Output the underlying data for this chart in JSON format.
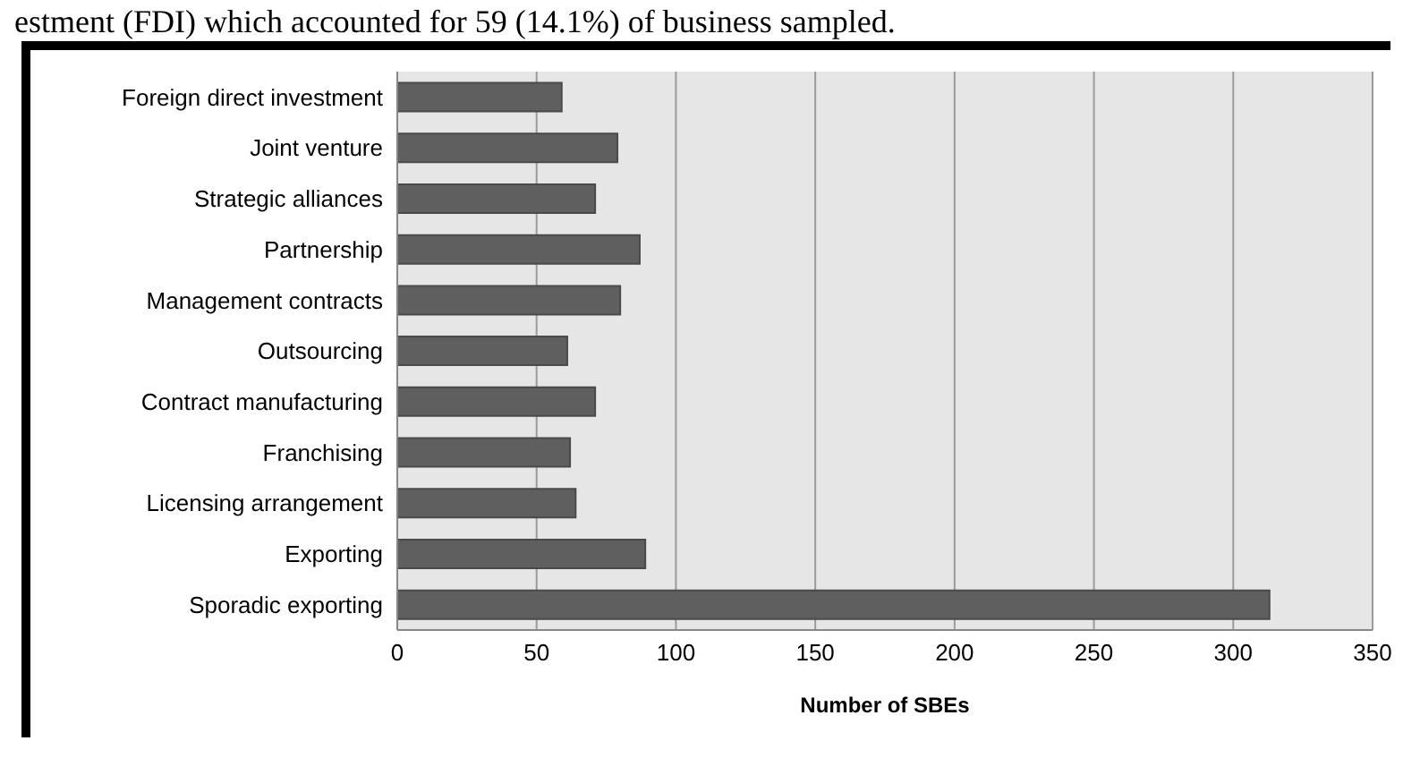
{
  "chart_data": {
    "type": "bar",
    "orientation": "horizontal",
    "xlabel": "Number of SBEs",
    "annotations": [
      "estment (FDI) which accounted for 59 (14.1%) of business sampled."
    ],
    "categories": [
      "Foreign direct investment",
      "Joint venture",
      "Strategic alliances",
      "Partnership",
      "Management contracts",
      "Outsourcing",
      "Contract manufacturing",
      "Franchising",
      "Licensing arrangement",
      "Exporting",
      "Sporadic exporting"
    ],
    "values": [
      59,
      79,
      71,
      87,
      80,
      61,
      71,
      62,
      64,
      89,
      313
    ],
    "color": "#5f5f5f",
    "xlim": [
      0,
      350
    ],
    "xticks": [
      0,
      50,
      100,
      150,
      200,
      250,
      300,
      350
    ],
    "grid": "x",
    "legend": false
  }
}
